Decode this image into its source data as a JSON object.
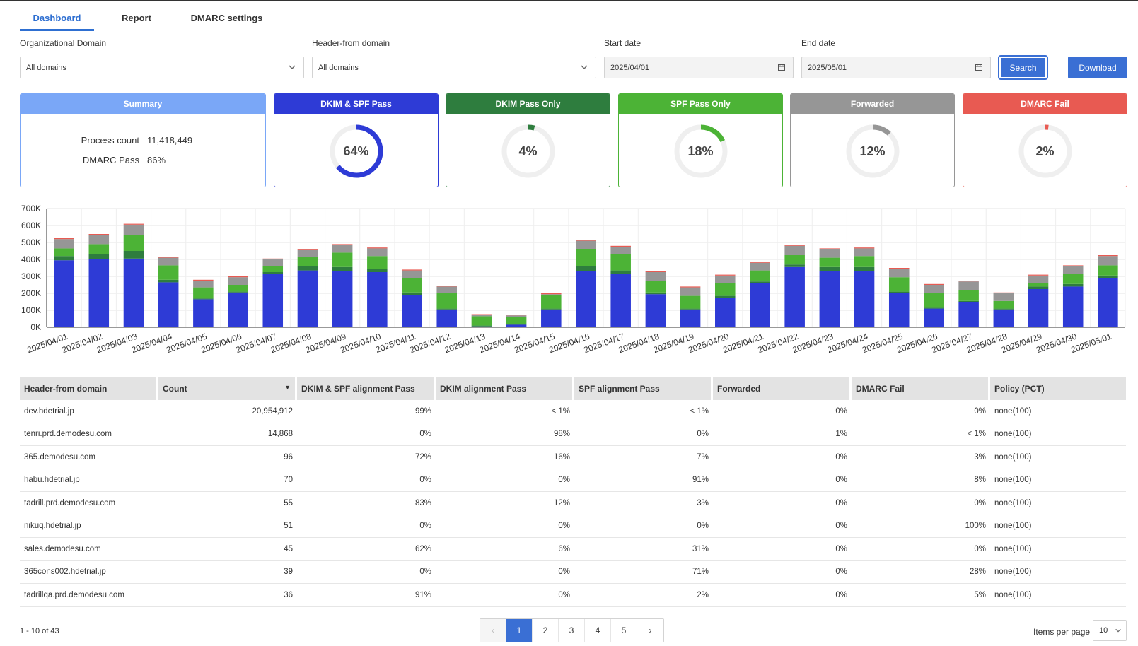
{
  "tabs": [
    {
      "label": "Dashboard",
      "active": true
    },
    {
      "label": "Report",
      "active": false
    },
    {
      "label": "DMARC settings",
      "active": false
    }
  ],
  "filters": {
    "org_domain": {
      "label": "Organizational Domain",
      "value": "All domains"
    },
    "header_from": {
      "label": "Header-from domain",
      "value": "All domains"
    },
    "start_date": {
      "label": "Start date",
      "value": "2025/04/01"
    },
    "end_date": {
      "label": "End date",
      "value": "2025/05/01"
    },
    "search_label": "Search",
    "download_label": "Download"
  },
  "summary": {
    "title": "Summary",
    "process_count_label": "Process count",
    "process_count": "11,418,449",
    "dmarc_pass_label": "DMARC Pass",
    "dmarc_pass": "86%"
  },
  "cards": [
    {
      "title": "DKIM & SPF Pass",
      "value": "64%",
      "percent": 64,
      "color": "#2e3bd6"
    },
    {
      "title": "DKIM Pass Only",
      "value": "4%",
      "percent": 4,
      "color": "#2e7d3e"
    },
    {
      "title": "SPF Pass Only",
      "value": "18%",
      "percent": 18,
      "color": "#4cb336"
    },
    {
      "title": "Forwarded",
      "value": "12%",
      "percent": 12,
      "color": "#969696"
    },
    {
      "title": "DMARC Fail",
      "value": "2%",
      "percent": 2,
      "color": "#e85a52"
    }
  ],
  "chart_data": {
    "type": "bar",
    "stacked": true,
    "categories": [
      "2025/04/01",
      "2025/04/02",
      "2025/04/03",
      "2025/04/04",
      "2025/04/05",
      "2025/04/06",
      "2025/04/07",
      "2025/04/08",
      "2025/04/09",
      "2025/04/10",
      "2025/04/11",
      "2025/04/12",
      "2025/04/13",
      "2025/04/14",
      "2025/04/15",
      "2025/04/16",
      "2025/04/17",
      "2025/04/18",
      "2025/04/19",
      "2025/04/20",
      "2025/04/21",
      "2025/04/22",
      "2025/04/23",
      "2025/04/24",
      "2025/04/25",
      "2025/04/26",
      "2025/04/27",
      "2025/04/28",
      "2025/04/29",
      "2025/04/30",
      "2025/05/01"
    ],
    "series": [
      {
        "color": "#2e3bd6",
        "values": [
          395,
          400,
          405,
          265,
          165,
          205,
          315,
          335,
          330,
          325,
          190,
          105,
          5,
          15,
          105,
          330,
          315,
          195,
          105,
          175,
          260,
          355,
          330,
          330,
          200,
          110,
          150,
          105,
          225,
          240,
          290
        ]
      },
      {
        "color": "#2e7d3e",
        "values": [
          25,
          30,
          45,
          15,
          5,
          5,
          10,
          25,
          25,
          20,
          15,
          5,
          5,
          5,
          5,
          30,
          20,
          10,
          5,
          10,
          10,
          15,
          25,
          25,
          10,
          5,
          5,
          5,
          15,
          15,
          15
        ]
      },
      {
        "color": "#4cb336",
        "values": [
          45,
          60,
          95,
          85,
          65,
          40,
          35,
          55,
          85,
          75,
          85,
          90,
          55,
          40,
          80,
          100,
          95,
          70,
          75,
          75,
          65,
          55,
          55,
          65,
          85,
          85,
          65,
          45,
          20,
          60,
          60
        ]
      },
      {
        "color": "#969696",
        "values": [
          55,
          55,
          60,
          45,
          40,
          45,
          40,
          40,
          45,
          45,
          45,
          40,
          10,
          10,
          5,
          50,
          45,
          50,
          50,
          45,
          45,
          55,
          50,
          45,
          50,
          50,
          50,
          45,
          45,
          45,
          55
        ]
      },
      {
        "color": "#e85a52",
        "values": [
          5,
          5,
          5,
          5,
          5,
          5,
          5,
          5,
          5,
          5,
          5,
          5,
          2,
          2,
          5,
          5,
          5,
          5,
          5,
          5,
          5,
          5,
          5,
          5,
          5,
          5,
          5,
          5,
          5,
          5,
          5
        ]
      }
    ],
    "unit": "K",
    "ylim": [
      0,
      700
    ],
    "yticks": [
      "0K",
      "100K",
      "200K",
      "300K",
      "400K",
      "500K",
      "600K",
      "700K"
    ],
    "grid": true
  },
  "table": {
    "columns": [
      "Header-from domain",
      "Count",
      "DKIM & SPF alignment Pass",
      "DKIM alignment Pass",
      "SPF alignment Pass",
      "Forwarded",
      "DMARC Fail",
      "Policy (PCT)"
    ],
    "rows": [
      [
        "dev.hdetrial.jp",
        "20,954,912",
        "99%",
        "< 1%",
        "< 1%",
        "0%",
        "0%",
        "none(100)"
      ],
      [
        "tenri.prd.demodesu.com",
        "14,868",
        "0%",
        "98%",
        "0%",
        "1%",
        "< 1%",
        "none(100)"
      ],
      [
        "365.demodesu.com",
        "96",
        "72%",
        "16%",
        "7%",
        "0%",
        "3%",
        "none(100)"
      ],
      [
        "habu.hdetrial.jp",
        "70",
        "0%",
        "0%",
        "91%",
        "0%",
        "8%",
        "none(100)"
      ],
      [
        "tadrill.prd.demodesu.com",
        "55",
        "83%",
        "12%",
        "3%",
        "0%",
        "0%",
        "none(100)"
      ],
      [
        "nikuq.hdetrial.jp",
        "51",
        "0%",
        "0%",
        "0%",
        "0%",
        "100%",
        "none(100)"
      ],
      [
        "sales.demodesu.com",
        "45",
        "62%",
        "6%",
        "31%",
        "0%",
        "0%",
        "none(100)"
      ],
      [
        "365cons002.hdetrial.jp",
        "39",
        "0%",
        "0%",
        "71%",
        "0%",
        "28%",
        "none(100)"
      ],
      [
        "tadrillqa.prd.demodesu.com",
        "36",
        "91%",
        "0%",
        "2%",
        "0%",
        "5%",
        "none(100)"
      ]
    ]
  },
  "footer": {
    "range": "1 - 10 of 43",
    "pages": [
      "1",
      "2",
      "3",
      "4",
      "5"
    ],
    "prev": "‹",
    "next": "›",
    "items_per_page_label": "Items per page",
    "items_per_page": "10"
  }
}
